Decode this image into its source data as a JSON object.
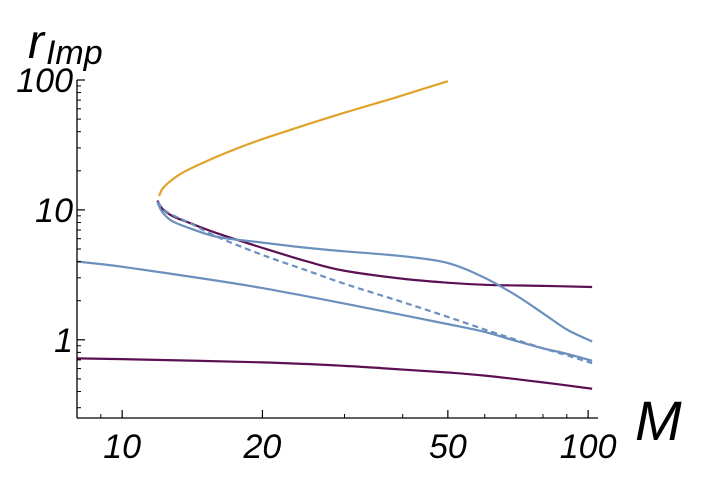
{
  "chart_data": {
    "type": "line",
    "title": "",
    "xlabel": "M",
    "ylabel_main": "r",
    "ylabel_sub": "Imp",
    "xscale": "log",
    "yscale": "log",
    "xlim": [
      8,
      105
    ],
    "ylim": [
      0.25,
      100
    ],
    "xticks": [
      {
        "value": 10,
        "label": "10"
      },
      {
        "value": 20,
        "label": "20"
      },
      {
        "value": 50,
        "label": "50"
      },
      {
        "value": 100,
        "label": "100"
      }
    ],
    "yticks": [
      {
        "value": 1,
        "label": "1"
      },
      {
        "value": 10,
        "label": "10"
      },
      {
        "value": 100,
        "label": "100"
      }
    ],
    "grid": false,
    "legend": "none",
    "series": [
      {
        "color": "#e0a32a",
        "dash": "solid",
        "x": [
          12.0,
          12.2,
          12.6,
          13.3,
          14.5,
          16.5,
          19.5,
          24,
          30,
          38,
          50
        ],
        "y": [
          12.8,
          14.5,
          16.3,
          18.8,
          22.0,
          27.0,
          34.0,
          43.5,
          56.0,
          72.0,
          98.0
        ]
      },
      {
        "color": "#5b1053",
        "dash": "solid",
        "x": [
          11.9,
          12.2,
          12.8,
          14,
          16,
          20,
          25,
          30,
          40,
          50,
          60,
          80,
          102
        ],
        "y": [
          11.8,
          10.2,
          9.0,
          7.9,
          6.6,
          5.1,
          4.0,
          3.4,
          2.95,
          2.75,
          2.65,
          2.6,
          2.55
        ]
      },
      {
        "color": "#6b90bd",
        "dash": "solid",
        "x": [
          11.9,
          12.2,
          12.8,
          14,
          16,
          20,
          25,
          30,
          40,
          50,
          60,
          70,
          80,
          90,
          102
        ],
        "y": [
          11.5,
          9.6,
          8.2,
          7.2,
          6.2,
          5.6,
          5.1,
          4.8,
          4.4,
          3.9,
          3.0,
          2.2,
          1.6,
          1.2,
          0.97
        ]
      },
      {
        "color": "#6b90bd",
        "dash": "dashed",
        "x": [
          11.9,
          12.5,
          14,
          16,
          20,
          25,
          30,
          40,
          50,
          60,
          70,
          80,
          90,
          102
        ],
        "y": [
          11.5,
          9.6,
          7.9,
          6.2,
          4.5,
          3.4,
          2.7,
          1.95,
          1.5,
          1.2,
          1.0,
          0.86,
          0.76,
          0.66
        ]
      },
      {
        "color": "#6b90bd",
        "dash": "solid",
        "x": [
          8,
          10,
          15,
          20,
          30,
          40,
          50,
          60,
          70,
          80,
          90,
          102
        ],
        "y": [
          4.0,
          3.65,
          2.95,
          2.5,
          1.9,
          1.55,
          1.32,
          1.15,
          0.98,
          0.86,
          0.78,
          0.69
        ]
      },
      {
        "color": "#5b1053",
        "dash": "solid",
        "x": [
          8,
          10,
          20,
          30,
          40,
          50,
          60,
          80,
          102
        ],
        "y": [
          0.72,
          0.71,
          0.67,
          0.63,
          0.59,
          0.56,
          0.53,
          0.47,
          0.42
        ]
      }
    ]
  }
}
